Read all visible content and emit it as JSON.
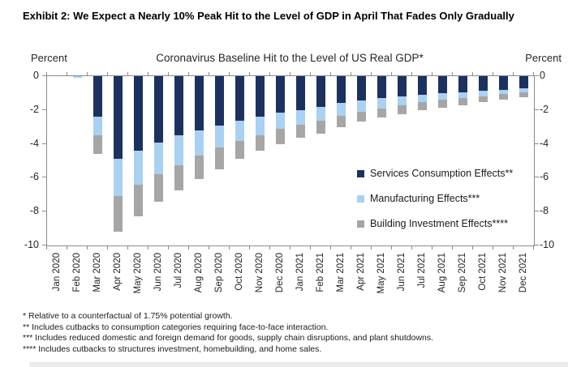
{
  "page": {
    "exhibit_title": "Exhibit 2: We Expect a Nearly 10% Peak Hit to the Level of GDP in April That Fades Only Gradually"
  },
  "chart": {
    "title": "Coronavirus Baseline Hit to the Level of US Real GDP*",
    "left_axis_unit": "Percent",
    "right_axis_unit": "Percent"
  },
  "footnotes": [
    "* Relative to a counterfactual of 1.75% potential growth.",
    "** Includes cutbacks to consumption categories requiring face-to-face interaction.",
    "*** Includes reduced domestic and foreign demand for goods, supply chain disruptions, and plant shutdowns.",
    "**** Includes cutbacks to structures investment, homebuilding, and home sales."
  ],
  "colors": {
    "services_navy": "#1d3160",
    "manufacturing_lightblue": "#a9d1f2",
    "building_gray": "#a6a6a6",
    "axis_line": "#8c8c8c",
    "text": "#1a1a1a",
    "bottom_strip": "#ececec"
  },
  "chart_data": {
    "type": "bar",
    "stacked": true,
    "title": "Coronavirus Baseline Hit to the Level of US Real GDP*",
    "xlabel": "",
    "ylabel_left": "Percent",
    "ylabel_right": "Percent",
    "ylim": [
      -10,
      0
    ],
    "ytick_step": 2,
    "ytick_labels": [
      "0",
      "-2",
      "-4",
      "-6",
      "-8",
      "-10"
    ],
    "grid": false,
    "legend_position": "inside-right",
    "categories": [
      "Jan 2020",
      "Feb 2020",
      "Mar 2020",
      "Apr 2020",
      "May 2020",
      "Jun 2020",
      "Jul 2020",
      "Aug 2020",
      "Sep 2020",
      "Oct 2020",
      "Nov 2020",
      "Dec 2020",
      "Jan 2021",
      "Feb 2021",
      "Mar 2021",
      "Apr 2021",
      "May 2021",
      "Jun 2021",
      "Jul 2021",
      "Aug 2021",
      "Sep 2021",
      "Oct 2021",
      "Nov 2021",
      "Dec 2021"
    ],
    "series": [
      {
        "name": "Services Consumption Effects**",
        "color": "#1d3160",
        "values": [
          0,
          0,
          -2.4,
          -4.9,
          -4.4,
          -3.9,
          -3.5,
          -3.2,
          -2.9,
          -2.65,
          -2.4,
          -2.15,
          -2.0,
          -1.8,
          -1.6,
          -1.45,
          -1.3,
          -1.2,
          -1.1,
          -1.0,
          -0.95,
          -0.85,
          -0.8,
          -0.7
        ]
      },
      {
        "name": "Manufacturing Effects***",
        "color": "#a9d1f2",
        "values": [
          0,
          -0.1,
          -1.1,
          -2.2,
          -2.0,
          -1.9,
          -1.75,
          -1.5,
          -1.3,
          -1.2,
          -1.1,
          -0.95,
          -0.85,
          -0.85,
          -0.75,
          -0.65,
          -0.6,
          -0.5,
          -0.45,
          -0.4,
          -0.35,
          -0.35,
          -0.25,
          -0.25
        ]
      },
      {
        "name": "Building Investment Effects****",
        "color": "#a6a6a6",
        "values": [
          0,
          0,
          -1.1,
          -2.1,
          -1.9,
          -1.6,
          -1.5,
          -1.4,
          -1.3,
          -1.05,
          -0.9,
          -0.9,
          -0.8,
          -0.75,
          -0.65,
          -0.6,
          -0.55,
          -0.55,
          -0.45,
          -0.45,
          -0.4,
          -0.35,
          -0.35,
          -0.3
        ]
      }
    ]
  }
}
